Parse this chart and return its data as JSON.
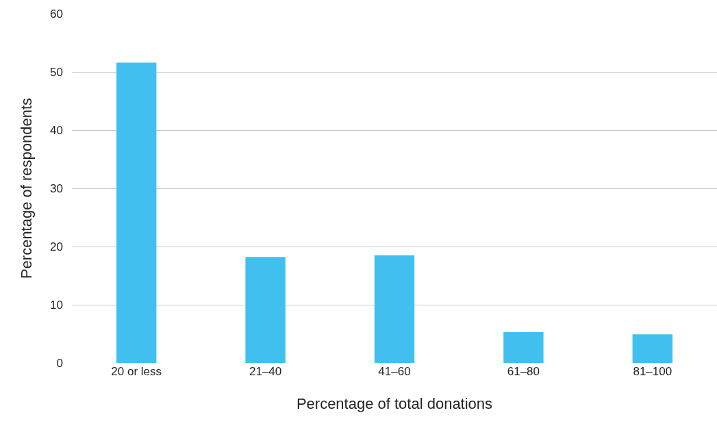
{
  "chart_data": {
    "type": "bar",
    "xlabel": "Percentage of total donations",
    "ylabel": "Percentage of respondents",
    "categories": [
      "20 or less",
      "21–40",
      "41–60",
      "61–80",
      "81–100"
    ],
    "values": [
      51.6,
      18.2,
      18.5,
      5.3,
      4.9
    ],
    "color": "#41c0f0",
    "ylim": [
      0,
      60
    ],
    "yticks": [
      0,
      10,
      20,
      30,
      40,
      50,
      60
    ],
    "grid": "y"
  }
}
